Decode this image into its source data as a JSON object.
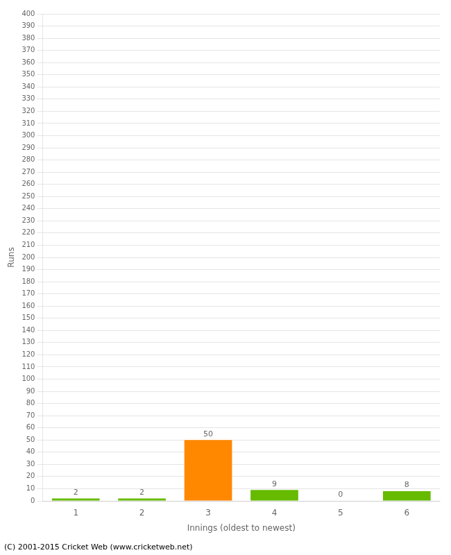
{
  "chart_data": {
    "type": "bar",
    "categories": [
      1,
      2,
      3,
      4,
      5,
      6
    ],
    "values": [
      2,
      2,
      50,
      9,
      0,
      8
    ],
    "colors": [
      "#66bb00",
      "#66bb00",
      "#ff8800",
      "#66bb00",
      "#66bb00",
      "#66bb00"
    ],
    "xlabel": "Innings (oldest to newest)",
    "ylabel": "Runs",
    "footer": "(C) 2001-2015 Cricket Web (www.cricketweb.net)",
    "ylim": [
      0,
      400
    ],
    "yticks": [
      0,
      10,
      20,
      30,
      40,
      50,
      60,
      70,
      80,
      90,
      100,
      110,
      120,
      130,
      140,
      150,
      160,
      170,
      180,
      190,
      200,
      210,
      220,
      230,
      240,
      250,
      260,
      270,
      280,
      290,
      300,
      310,
      320,
      330,
      340,
      350,
      360,
      370,
      380,
      390,
      400
    ],
    "grid": true,
    "data_labels": true
  }
}
